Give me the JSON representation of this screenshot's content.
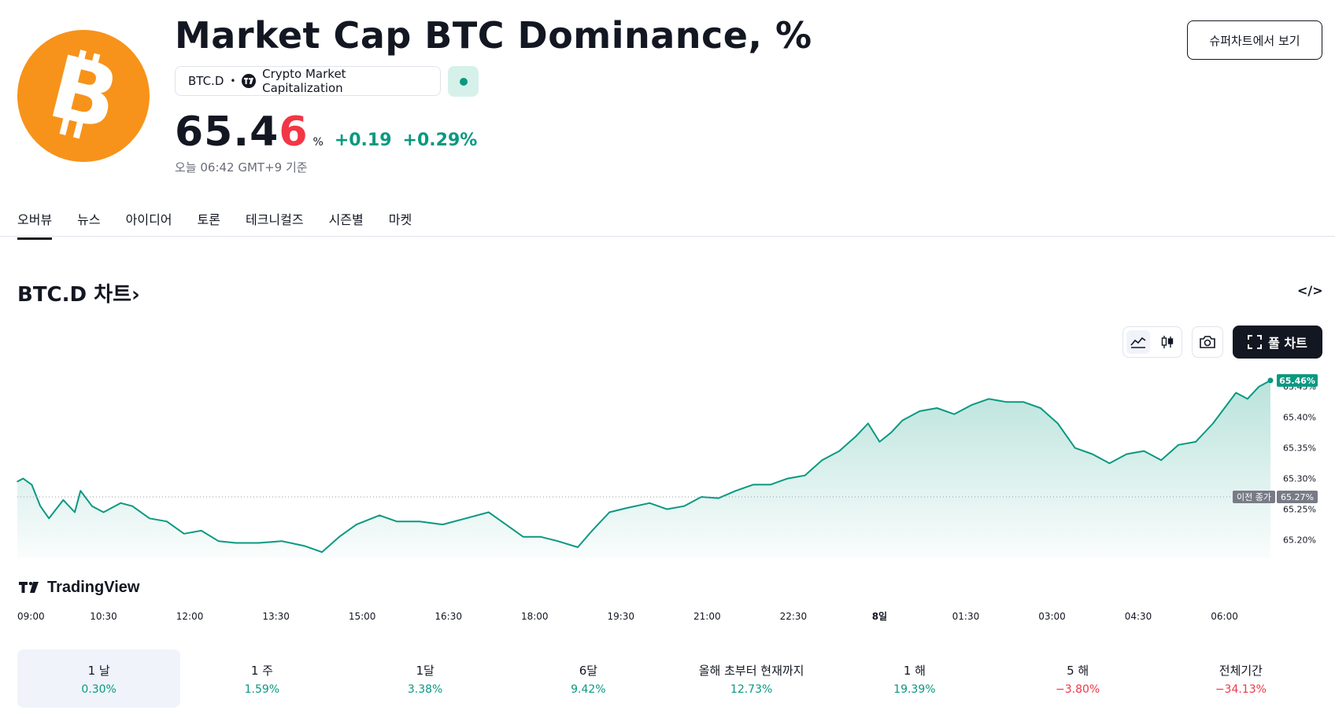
{
  "header": {
    "title": "Market Cap BTC Dominance, %",
    "supercharts_button": "슈퍼차트에서 보기",
    "symbol": "BTC.D",
    "separator": "•",
    "source": "Crypto Market Capitalization",
    "price_main": "65.4",
    "price_last_digit": "6",
    "price_unit": "%",
    "change": "+0.19",
    "change_percent": "+0.29%",
    "as_of": "오늘 06:42 GMT+9 기준",
    "logo_glyph": "bitcoin-symbol",
    "market_status": "open"
  },
  "tabs": [
    "오버뷰",
    "뉴스",
    "아이디어",
    "토론",
    "테크니컬즈",
    "시즌별",
    "마켓"
  ],
  "active_tab": 0,
  "chart_section": {
    "heading": "BTC.D 차트",
    "heading_chevron": "›",
    "embed_icon": "</>",
    "full_chart_label": "풀 차트",
    "tools": [
      "area-chart-icon",
      "candles-icon",
      "camera-icon",
      "fullscreen-icon"
    ],
    "watermark": "TradingView"
  },
  "chart_data": {
    "type": "area",
    "title": "",
    "xlabel": "",
    "ylabel": "",
    "x_ticks": [
      "09:00",
      "10:30",
      "12:00",
      "13:30",
      "15:00",
      "16:30",
      "18:00",
      "19:30",
      "21:00",
      "22:30",
      "8일",
      "01:30",
      "03:00",
      "04:30",
      "06:00"
    ],
    "y_ticks": [
      "65.45%",
      "65.40%",
      "65.35%",
      "65.30%",
      "65.25%",
      "65.20%"
    ],
    "ylim": [
      65.17,
      65.465
    ],
    "x_range_hours": [
      0,
      21.8
    ],
    "series": [
      {
        "values": [
          [
            0.0,
            65.295
          ],
          [
            0.1,
            65.3
          ],
          [
            0.25,
            65.29
          ],
          [
            0.4,
            65.255
          ],
          [
            0.55,
            65.235
          ],
          [
            0.8,
            65.265
          ],
          [
            1.0,
            65.245
          ],
          [
            1.1,
            65.28
          ],
          [
            1.3,
            65.255
          ],
          [
            1.5,
            65.245
          ],
          [
            1.8,
            65.26
          ],
          [
            2.0,
            65.255
          ],
          [
            2.3,
            65.235
          ],
          [
            2.6,
            65.23
          ],
          [
            2.9,
            65.21
          ],
          [
            3.2,
            65.215
          ],
          [
            3.5,
            65.198
          ],
          [
            3.8,
            65.195
          ],
          [
            4.2,
            65.195
          ],
          [
            4.6,
            65.198
          ],
          [
            5.0,
            65.19
          ],
          [
            5.3,
            65.18
          ],
          [
            5.6,
            65.205
          ],
          [
            5.9,
            65.225
          ],
          [
            6.3,
            65.24
          ],
          [
            6.6,
            65.23
          ],
          [
            7.0,
            65.23
          ],
          [
            7.4,
            65.225
          ],
          [
            7.8,
            65.235
          ],
          [
            8.2,
            65.245
          ],
          [
            8.5,
            65.225
          ],
          [
            8.8,
            65.205
          ],
          [
            9.1,
            65.205
          ],
          [
            9.4,
            65.198
          ],
          [
            9.75,
            65.188
          ],
          [
            10.0,
            65.215
          ],
          [
            10.3,
            65.245
          ],
          [
            10.6,
            65.252
          ],
          [
            11.0,
            65.26
          ],
          [
            11.3,
            65.25
          ],
          [
            11.6,
            65.255
          ],
          [
            11.9,
            65.27
          ],
          [
            12.2,
            65.268
          ],
          [
            12.5,
            65.28
          ],
          [
            12.8,
            65.29
          ],
          [
            13.1,
            65.29
          ],
          [
            13.4,
            65.3
          ],
          [
            13.7,
            65.305
          ],
          [
            14.0,
            65.33
          ],
          [
            14.3,
            65.345
          ],
          [
            14.6,
            65.37
          ],
          [
            14.8,
            65.39
          ],
          [
            15.0,
            65.36
          ],
          [
            15.2,
            65.375
          ],
          [
            15.4,
            65.395
          ],
          [
            15.7,
            65.41
          ],
          [
            16.0,
            65.415
          ],
          [
            16.3,
            65.405
          ],
          [
            16.6,
            65.42
          ],
          [
            16.9,
            65.43
          ],
          [
            17.2,
            65.425
          ],
          [
            17.5,
            65.425
          ],
          [
            17.8,
            65.415
          ],
          [
            18.1,
            65.39
          ],
          [
            18.4,
            65.35
          ],
          [
            18.7,
            65.34
          ],
          [
            19.0,
            65.325
          ],
          [
            19.3,
            65.34
          ],
          [
            19.6,
            65.345
          ],
          [
            19.9,
            65.33
          ],
          [
            20.2,
            65.355
          ],
          [
            20.5,
            65.36
          ],
          [
            20.8,
            65.39
          ],
          [
            21.0,
            65.415
          ],
          [
            21.2,
            65.44
          ],
          [
            21.4,
            65.43
          ],
          [
            21.6,
            65.45
          ],
          [
            21.8,
            65.46
          ]
        ]
      }
    ],
    "previous_close": 65.27,
    "previous_close_label": "이전 종가",
    "previous_close_tag": "65.27%",
    "last_value_tag": "65.46%",
    "line_color": "#089981",
    "grid": false,
    "legend": "none"
  },
  "periods": [
    {
      "label": "1 날",
      "value": "0.30%",
      "dir": "pos"
    },
    {
      "label": "1 주",
      "value": "1.59%",
      "dir": "pos"
    },
    {
      "label": "1달",
      "value": "3.38%",
      "dir": "pos"
    },
    {
      "label": "6달",
      "value": "9.42%",
      "dir": "pos"
    },
    {
      "label": "올해 초부터 현재까지",
      "value": "12.73%",
      "dir": "pos"
    },
    {
      "label": "1 해",
      "value": "19.39%",
      "dir": "pos"
    },
    {
      "label": "5 해",
      "value": "−3.80%",
      "dir": "neg"
    },
    {
      "label": "전체기간",
      "value": "−34.13%",
      "dir": "neg"
    }
  ],
  "colors": {
    "accent": "#089981",
    "negative": "#f23645",
    "logo": "#f7931a",
    "text": "#131722"
  }
}
